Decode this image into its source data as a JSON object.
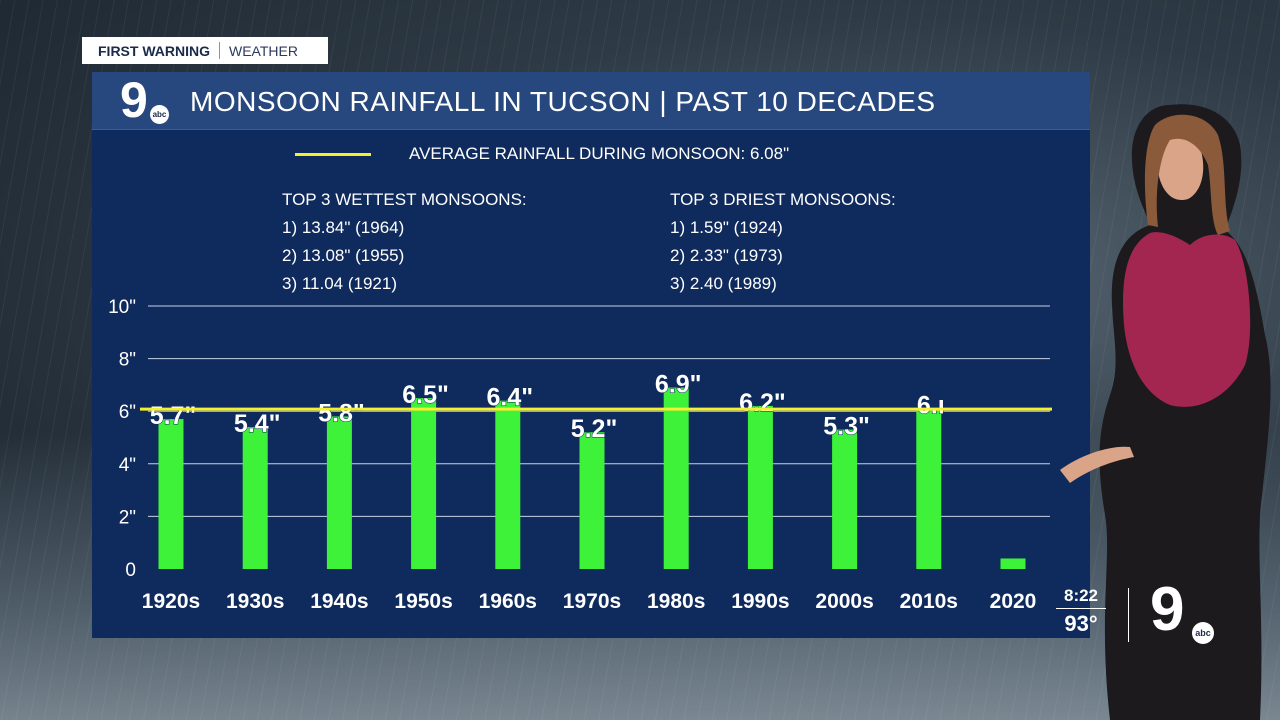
{
  "badge": {
    "first_warning": "FIRST WARNING",
    "weather": "WEATHER"
  },
  "station": {
    "logo_number": "9",
    "logo_network": "abc"
  },
  "header": {
    "title": "MONSOON RAINFALL IN TUCSON  |  PAST 10 DECADES"
  },
  "legend": {
    "average_label": "AVERAGE RAINFALL DURING MONSOON: 6.08\"",
    "average_color": "#f3f031"
  },
  "wettest": {
    "heading": "TOP 3 WETTEST MONSOONS:",
    "items": [
      "1) 13.84\" (1964)",
      "2) 13.08\" (1955)",
      "3) 11.04 (1921)"
    ]
  },
  "driest": {
    "heading": "TOP 3 DRIEST MONSOONS:",
    "items": [
      "1) 1.59\" (1924)",
      "2) 2.33\" (1973)",
      "3) 2.40 (1989)"
    ]
  },
  "ticker": {
    "time": "8:22",
    "temp": "93°"
  },
  "chart_data": {
    "type": "bar",
    "categories": [
      "1920s",
      "1930s",
      "1940s",
      "1950s",
      "1960s",
      "1970s",
      "1980s",
      "1990s",
      "2000s",
      "2010s",
      "2020"
    ],
    "values": [
      5.7,
      5.4,
      5.8,
      6.5,
      6.4,
      5.2,
      6.9,
      6.2,
      5.3,
      6.1,
      0.4
    ],
    "data_labels": [
      "5.7\"",
      "5.4\"",
      "5.8\"",
      "6.5\"",
      "6.4\"",
      "5.2\"",
      "6.9\"",
      "6.2\"",
      "5.3\"",
      "6.ı",
      ""
    ],
    "y_ticks": [
      {
        "v": 0,
        "label": "0"
      },
      {
        "v": 2,
        "label": "2\""
      },
      {
        "v": 4,
        "label": "4\""
      },
      {
        "v": 6,
        "label": "6\""
      },
      {
        "v": 8,
        "label": "8\""
      },
      {
        "v": 10,
        "label": "10\""
      }
    ],
    "ylim": [
      0,
      10
    ],
    "average": 6.08,
    "bar_color": "#3ef23a",
    "average_line_color": "#f3f031",
    "grid": true
  }
}
